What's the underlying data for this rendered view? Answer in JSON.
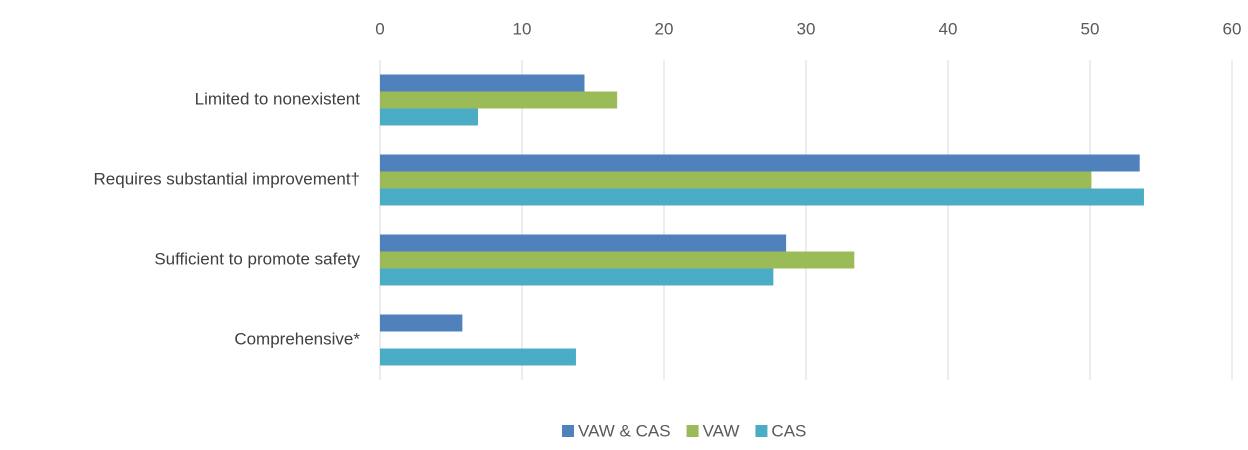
{
  "chart_data": {
    "type": "hbar",
    "categories": [
      "Limited to nonexistent",
      "Requires substantial improvement†",
      "Sufficient to promote safety",
      "Comprehensive*"
    ],
    "series": [
      {
        "name": "VAW & CAS",
        "color": "#4f81bd",
        "values": [
          14.4,
          53.5,
          28.6,
          5.8
        ]
      },
      {
        "name": "VAW",
        "color": "#9bbb59",
        "values": [
          16.7,
          50.1,
          33.4,
          0
        ]
      },
      {
        "name": "CAS",
        "color": "#4bacc6",
        "values": [
          6.9,
          53.8,
          27.7,
          13.8
        ]
      }
    ],
    "xlim": [
      0,
      60
    ],
    "xticks": [
      0,
      10,
      20,
      30,
      40,
      50,
      60
    ],
    "grid": true,
    "legend": "bottom"
  }
}
